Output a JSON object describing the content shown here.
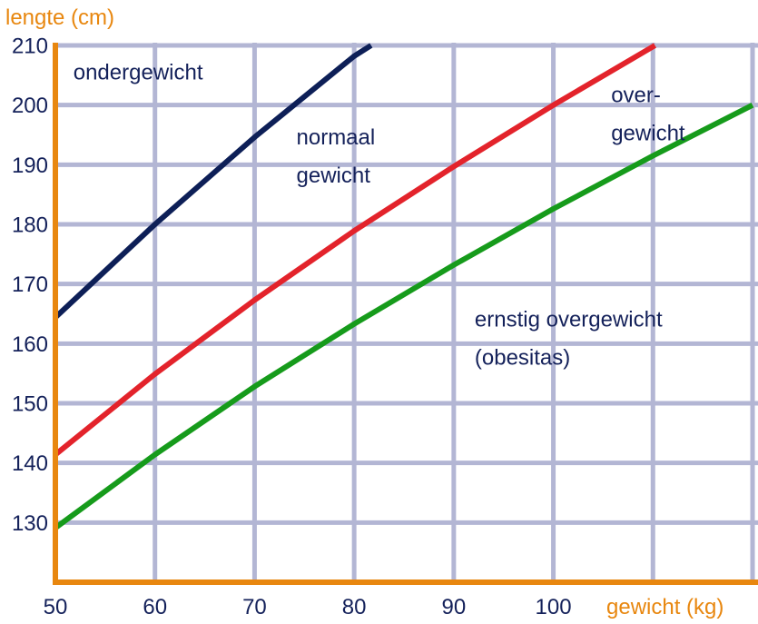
{
  "chart_data": {
    "type": "line",
    "xlabel": "gewicht (kg)",
    "ylabel": "lengte (cm)",
    "xlim": [
      50,
      120
    ],
    "ylim": [
      120,
      210
    ],
    "x_ticks": [
      50,
      60,
      70,
      80,
      90,
      100
    ],
    "y_ticks": [
      130,
      140,
      150,
      160,
      170,
      180,
      190,
      200,
      210
    ],
    "grid_x": [
      60,
      70,
      80,
      90,
      100,
      110,
      120
    ],
    "grid_y": [
      130,
      140,
      150,
      160,
      170,
      180,
      190,
      200,
      210
    ],
    "grid": true,
    "series": [
      {
        "color": "#0d1f57",
        "points": [
          [
            50,
            164.4
          ],
          [
            60,
            180.0
          ],
          [
            70,
            194.6
          ],
          [
            80,
            208.2
          ],
          [
            81.7,
            210.0
          ]
        ]
      },
      {
        "color": "#e3232b",
        "points": [
          [
            50,
            141.4
          ],
          [
            60,
            154.9
          ],
          [
            70,
            167.3
          ],
          [
            80,
            178.9
          ],
          [
            90,
            189.7
          ],
          [
            100,
            200.0
          ],
          [
            110,
            209.8
          ],
          [
            110.2,
            210.0
          ]
        ]
      },
      {
        "color": "#169b1b",
        "points": [
          [
            50,
            129.1
          ],
          [
            60,
            141.4
          ],
          [
            70,
            152.8
          ],
          [
            80,
            163.3
          ],
          [
            90,
            173.2
          ],
          [
            100,
            182.6
          ],
          [
            110,
            191.5
          ],
          [
            120,
            200.0
          ]
        ]
      }
    ],
    "annotations": [
      {
        "lines": [
          "ondergewicht"
        ],
        "x": 51.8,
        "y": 204.3
      },
      {
        "lines": [
          "normaal",
          "gewicht"
        ],
        "x": 74.2,
        "y": 193.4
      },
      {
        "lines": [
          "over-",
          "gewicht"
        ],
        "x": 105.8,
        "y": 200.5
      },
      {
        "lines": [
          "ernstig overgewicht",
          "(obesitas)"
        ],
        "x": 92.1,
        "y": 162.9
      }
    ]
  }
}
